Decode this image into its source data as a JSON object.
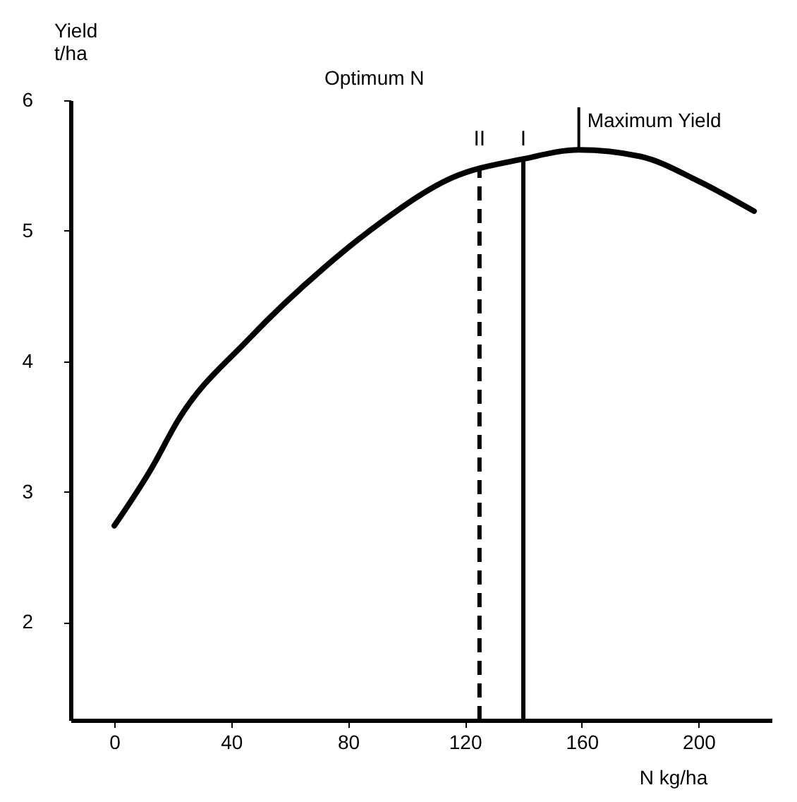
{
  "chart_data": {
    "type": "line",
    "xlabel": "N kg/ha",
    "ylabel": "Yield\nt/ha",
    "x": [
      0,
      13,
      21.6,
      46,
      72,
      91,
      115,
      140,
      159,
      180,
      200,
      219
    ],
    "series": [
      {
        "color": "#000000",
        "values": [
          2.74,
          3.19,
          3.54,
          4.17,
          4.72,
          5.06,
          5.4,
          5.55,
          5.62,
          5.57,
          5.38,
          5.15
        ]
      }
    ],
    "xlim": [
      -15,
      225
    ],
    "ylim": [
      1.25,
      6
    ],
    "xticks": [
      0,
      40,
      80,
      120,
      160,
      200
    ],
    "yticks": [
      2,
      3,
      4,
      5,
      6
    ],
    "ref_lines": [
      {
        "axis": "x",
        "value": 125,
        "label": "II",
        "line_style": "dashed",
        "color": "#000000"
      },
      {
        "axis": "x",
        "value": 140,
        "label": "I",
        "line_style": "solid",
        "color": "#000000"
      }
    ],
    "annotations": [
      "Optimum N",
      {
        "text": "Maximum Yield",
        "x": 159,
        "y": 5.62
      }
    ],
    "grid": false,
    "marker": "none",
    "line_style": "solid"
  }
}
